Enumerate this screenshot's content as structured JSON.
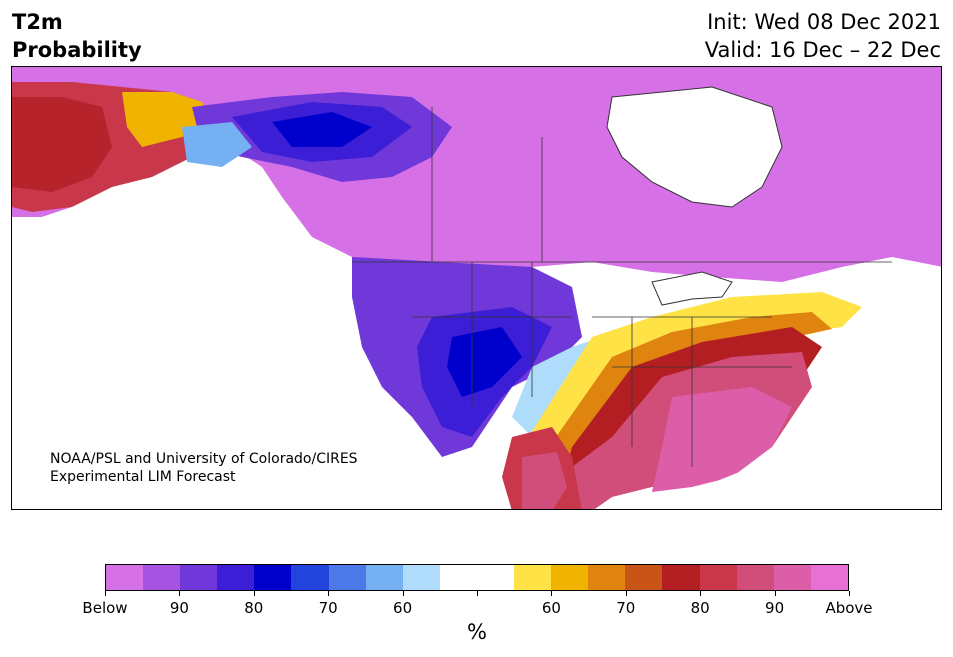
{
  "title": {
    "line1": "T2m",
    "line2": "Probability"
  },
  "info": {
    "init": "Init: Wed 08 Dec 2021",
    "valid": "Valid: 16 Dec – 22 Dec"
  },
  "credit": {
    "line1": "NOAA/PSL and University of Colorado/CIRES",
    "line2": "Experimental LIM Forecast"
  },
  "colorbar": {
    "colors": [
      "#d670e6",
      "#a553e0",
      "#7038d8",
      "#3b1ed6",
      "#0000cc",
      "#2244dd",
      "#4d78e8",
      "#75b0f2",
      "#aedcfa",
      "#ffffff",
      "#ffffff",
      "#ffe245",
      "#f0b400",
      "#e08410",
      "#c85418",
      "#b21e22",
      "#c8374a",
      "#d24e7a",
      "#dc5ea8",
      "#e670d4"
    ],
    "ticks": [
      "Below",
      "90",
      "80",
      "70",
      "60",
      "",
      "60",
      "70",
      "80",
      "90",
      "Above"
    ],
    "unit": "%"
  },
  "colors": {
    "ocean": "#ffffff",
    "border": "#333333"
  }
}
